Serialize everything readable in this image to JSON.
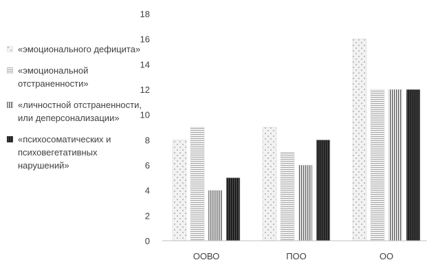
{
  "chart_data": {
    "type": "bar",
    "categories": [
      "ООВО",
      "ПОО",
      "ОО"
    ],
    "series": [
      {
        "name": "«эмоционального дефицита»",
        "values": [
          8,
          9,
          16
        ],
        "pattern": "dots",
        "color": "#d9d9d9"
      },
      {
        "name": "«эмоциональной отстраненности»",
        "values": [
          9,
          7,
          12
        ],
        "pattern": "hlines",
        "color": "#bfbfbf"
      },
      {
        "name": "«личностной отстраненности, или деперсонализации»",
        "values": [
          4,
          6,
          12
        ],
        "pattern": "vlines",
        "color": "#7f7f7f"
      },
      {
        "name": "«психосоматических и психовегетативных нарушений»",
        "values": [
          5,
          8,
          12
        ],
        "pattern": "dense",
        "color": "#262626"
      }
    ],
    "yticks": [
      "0",
      "2",
      "4",
      "6",
      "8",
      "10",
      "12",
      "14",
      "16",
      "18"
    ],
    "ylim": [
      0,
      18
    ],
    "grid": false,
    "legend_position": "left",
    "title": "",
    "xlabel": "",
    "ylabel": ""
  }
}
